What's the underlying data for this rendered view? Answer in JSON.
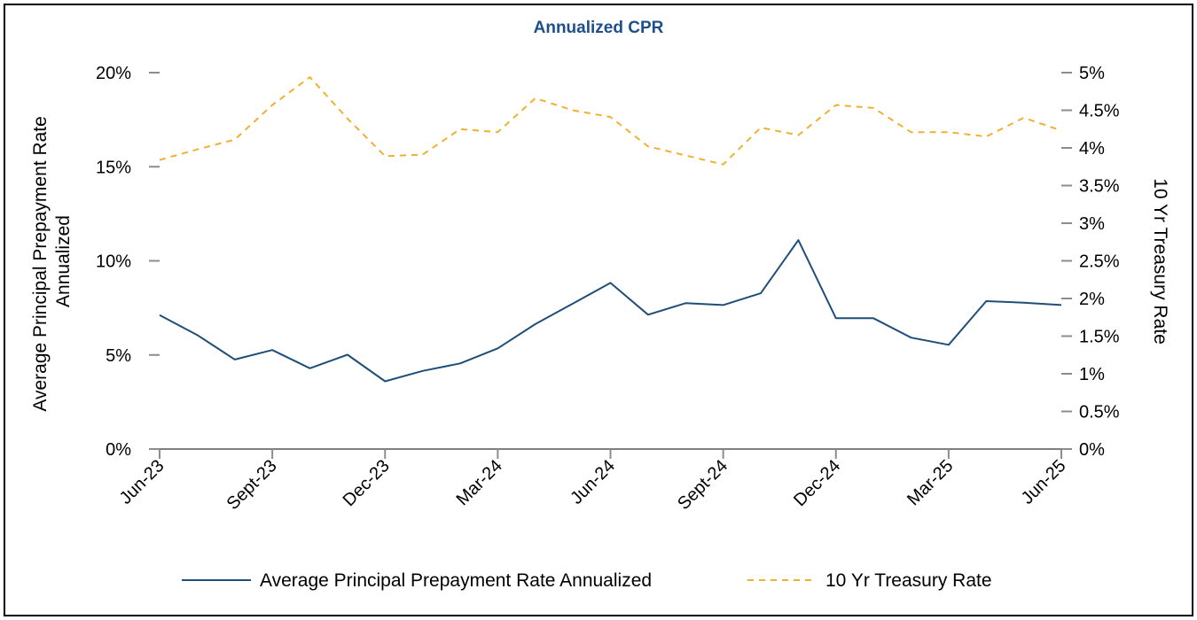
{
  "chart_data": {
    "type": "line",
    "title": "Annualized CPR",
    "categories": [
      "Jun-23",
      "Jul-23",
      "Aug-23",
      "Sept-23",
      "Oct-23",
      "Nov-23",
      "Dec-23",
      "Jan-24",
      "Feb-24",
      "Mar-24",
      "Apr-24",
      "May-24",
      "Jun-24",
      "Jul-24",
      "Aug-24",
      "Sept-24",
      "Oct-24",
      "Nov-24",
      "Dec-24",
      "Jan-25",
      "Feb-25",
      "Mar-25",
      "Apr-25",
      "May-25",
      "Jun-25"
    ],
    "x_tick_labels": [
      "Jun-23",
      "Sept-23",
      "Dec-23",
      "Mar-24",
      "Jun-24",
      "Sept-24",
      "Dec-24",
      "Mar-25",
      "Jun-25"
    ],
    "ylabel": "Average Principal Prepayment Rate Annualized",
    "y2label": "10 Yr Treasury Rate",
    "ylim": [
      0,
      20
    ],
    "y2lim": [
      0,
      5
    ],
    "y_tick_labels": [
      "0%",
      "5%",
      "10%",
      "15%",
      "20%"
    ],
    "y2_tick_labels": [
      "0%",
      "0.5%",
      "1%",
      "1.5%",
      "2%",
      "2.5%",
      "3%",
      "3.5%",
      "4%",
      "4.5%",
      "5%"
    ],
    "grid": false,
    "legend_position": "bottom",
    "series": [
      {
        "name": "Average Principal Prepayment Rate Annualized",
        "axis": "left",
        "color": "#1f4e79",
        "style": "solid",
        "values": [
          7.12,
          6.06,
          4.76,
          5.26,
          4.29,
          5.01,
          3.6,
          4.15,
          4.55,
          5.35,
          6.64,
          7.73,
          8.83,
          7.14,
          7.75,
          7.65,
          8.28,
          11.1,
          6.95,
          6.95,
          5.92,
          5.54,
          7.86,
          7.78,
          7.65
        ]
      },
      {
        "name": "10 Yr Treasury Rate",
        "axis": "right",
        "color": "#f0b030",
        "style": "dashed",
        "values": [
          3.84,
          3.98,
          4.11,
          4.57,
          4.94,
          4.39,
          3.89,
          3.91,
          4.25,
          4.21,
          4.66,
          4.5,
          4.41,
          4.02,
          3.9,
          3.78,
          4.27,
          4.17,
          4.57,
          4.53,
          4.21,
          4.21,
          4.15,
          4.4,
          4.23
        ]
      }
    ],
    "title_color": "#1f4e8c"
  }
}
